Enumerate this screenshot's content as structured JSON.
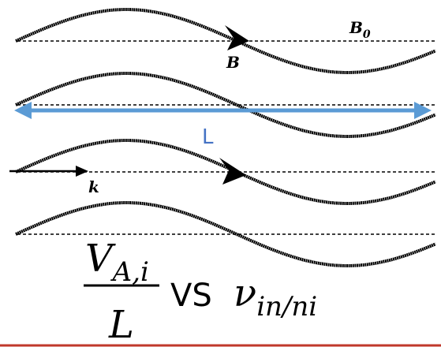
{
  "labels": {
    "b0": "B",
    "b0_sub": "0",
    "b": "B",
    "length": "L",
    "k": "k"
  },
  "formula": {
    "numerator": "V",
    "numerator_sub": "A,i",
    "denominator": "L",
    "vs": "VS",
    "nu": "ν",
    "nu_sub": "in/ni"
  }
}
